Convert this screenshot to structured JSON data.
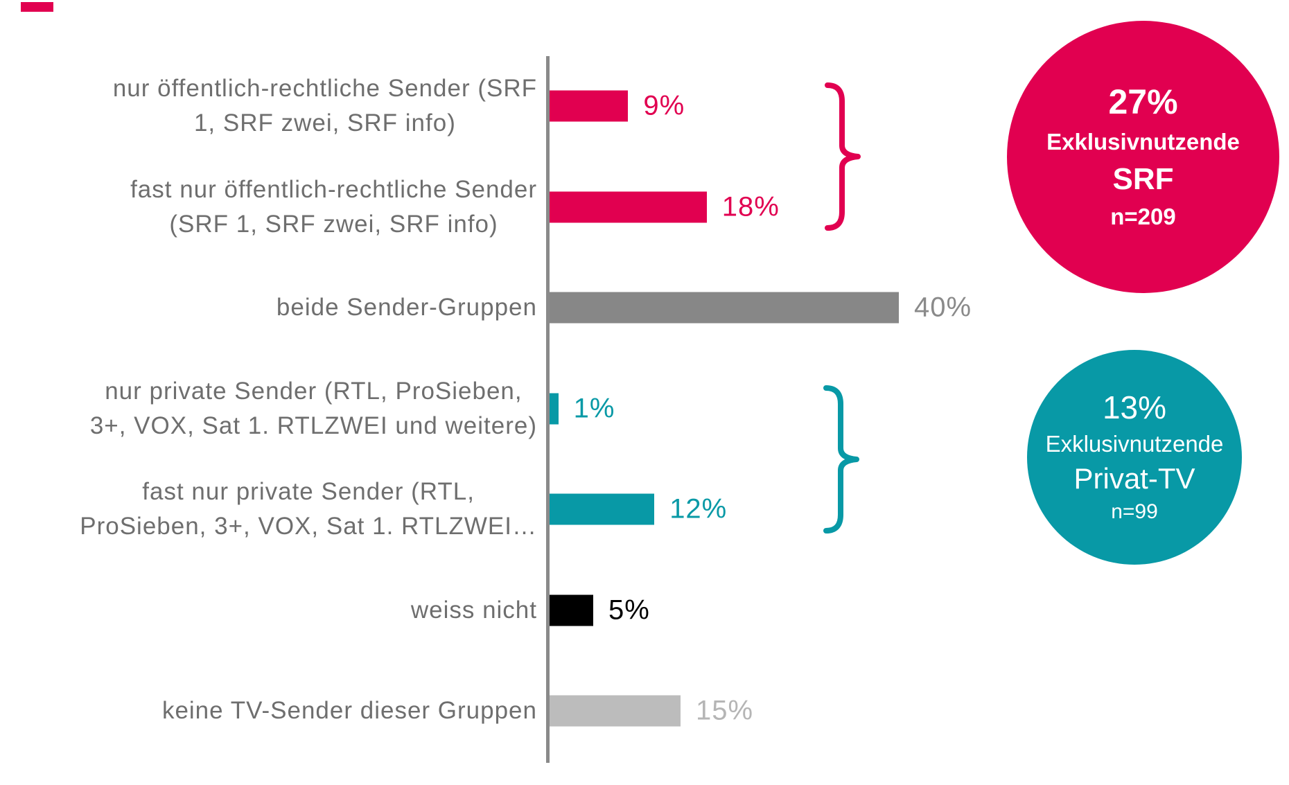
{
  "chart_data": {
    "type": "bar",
    "orientation": "horizontal",
    "unit": "%",
    "xlim": [
      0,
      45
    ],
    "grid": false,
    "axis_baseline_color": "#8A8A8A",
    "categories": [
      "nur öffentlich-rechtliche Sender (SRF 1, SRF zwei, SRF info)",
      "fast nur öffentlich-rechtliche Sender (SRF 1, SRF zwei, SRF info)",
      "beide Sender-Gruppen",
      "nur private Sender (RTL, ProSieben, 3+, VOX, Sat 1. RTLZWEI und weitere)",
      "fast nur private Sender (RTL, ProSieben, 3+, VOX, Sat 1. RTLZWEI…",
      "weiss nicht",
      "keine TV-Sender dieser Gruppen"
    ],
    "values": [
      9,
      18,
      40,
      1,
      12,
      5,
      15
    ],
    "rows": [
      {
        "label_lines": [
          "nur öffentlich-rechtliche Sender (SRF",
          "1, SRF zwei, SRF info)"
        ],
        "value": 9,
        "display": "9%",
        "bar_color": "#E10050",
        "value_color": "#E10050"
      },
      {
        "label_lines": [
          "fast nur öffentlich-rechtliche Sender",
          "(SRF 1, SRF zwei, SRF info)"
        ],
        "value": 18,
        "display": "18%",
        "bar_color": "#E10050",
        "value_color": "#E10050"
      },
      {
        "label_lines": [
          "beide Sender-Gruppen"
        ],
        "value": 40,
        "display": "40%",
        "bar_color": "#878787",
        "value_color": "#8A8A8A"
      },
      {
        "label_lines": [
          "nur private Sender (RTL, ProSieben,",
          "3+, VOX, Sat 1. RTLZWEI und weitere)"
        ],
        "value": 1,
        "display": "1%",
        "bar_color": "#0899A6",
        "value_color": "#0899A6"
      },
      {
        "label_lines": [
          "fast nur private Sender (RTL,",
          "ProSieben, 3+, VOX, Sat 1. RTLZWEI…"
        ],
        "value": 12,
        "display": "12%",
        "bar_color": "#0899A6",
        "value_color": "#0899A6"
      },
      {
        "label_lines": [
          "weiss nicht"
        ],
        "value": 5,
        "display": "5%",
        "bar_color": "#000000",
        "value_color": "#000000"
      },
      {
        "label_lines": [
          "keine TV-Sender dieser Gruppen"
        ],
        "value": 15,
        "display": "15%",
        "bar_color": "#BCBCBC",
        "value_color": "#B5B5B5"
      }
    ]
  },
  "annotations": {
    "srf_badge": {
      "percent": "27%",
      "label": "Exklusivnutzende",
      "group": "SRF",
      "n": "n=209",
      "color": "#E10050"
    },
    "private_badge": {
      "percent": "13%",
      "label": "Exklusivnutzende",
      "group": "Privat-TV",
      "n": "n=99",
      "color": "#0899A6"
    }
  },
  "braces": {
    "srf_color": "#E10050",
    "private_color": "#0899A6"
  },
  "decor": {
    "corner_mark_color": "#E10050"
  }
}
